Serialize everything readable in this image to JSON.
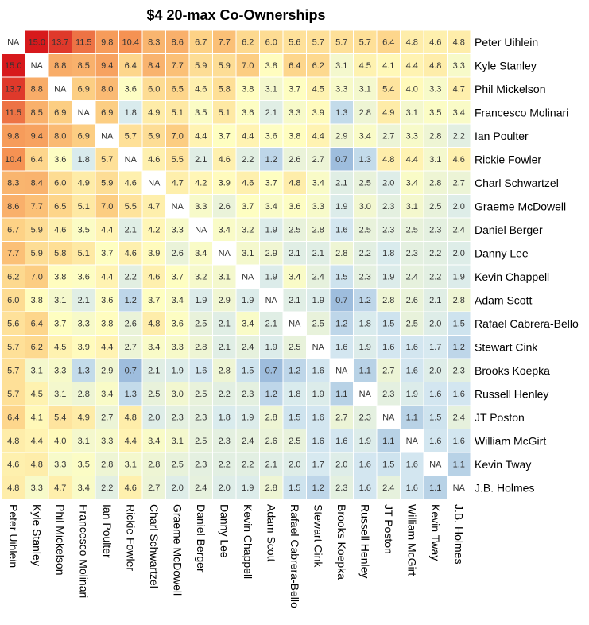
{
  "chart_data": {
    "type": "heatmap",
    "title": "$4 20-max Co-Ownerships",
    "xlabel": "",
    "ylabel": "",
    "missing_label": "NA",
    "players": [
      "Peter Uihlein",
      "Kyle Stanley",
      "Phil Mickelson",
      "Francesco Molinari",
      "Ian Poulter",
      "Rickie Fowler",
      "Charl Schwartzel",
      "Graeme McDowell",
      "Daniel Berger",
      "Danny Lee",
      "Kevin Chappell",
      "Adam Scott",
      "Rafael Cabrera-Bello",
      "Stewart Cink",
      "Brooks Koepka",
      "Russell Henley",
      "JT Poston",
      "William McGirt",
      "Kevin Tway",
      "J.B. Holmes"
    ],
    "values": [
      [
        null,
        15.0,
        13.7,
        11.5,
        9.8,
        10.4,
        8.3,
        8.6,
        6.7,
        7.7,
        6.2,
        6.0,
        5.6,
        5.7,
        5.7,
        5.7,
        6.4,
        4.8,
        4.6,
        4.8
      ],
      [
        15.0,
        null,
        8.8,
        8.5,
        9.4,
        6.4,
        8.4,
        7.7,
        5.9,
        5.9,
        7.0,
        3.8,
        6.4,
        6.2,
        3.1,
        4.5,
        4.1,
        4.4,
        4.8,
        3.3
      ],
      [
        13.7,
        8.8,
        null,
        6.9,
        8.0,
        3.6,
        6.0,
        6.5,
        4.6,
        5.8,
        3.8,
        3.1,
        3.7,
        4.5,
        3.3,
        3.1,
        5.4,
        4.0,
        3.3,
        4.7
      ],
      [
        11.5,
        8.5,
        6.9,
        null,
        6.9,
        1.8,
        4.9,
        5.1,
        3.5,
        5.1,
        3.6,
        2.1,
        3.3,
        3.9,
        1.3,
        2.8,
        4.9,
        3.1,
        3.5,
        3.4
      ],
      [
        9.8,
        9.4,
        8.0,
        6.9,
        null,
        5.7,
        5.9,
        7.0,
        4.4,
        3.7,
        4.4,
        3.6,
        3.8,
        4.4,
        2.9,
        3.4,
        2.7,
        3.3,
        2.8,
        2.2
      ],
      [
        10.4,
        6.4,
        3.6,
        1.8,
        5.7,
        null,
        4.6,
        5.5,
        2.1,
        4.6,
        2.2,
        1.2,
        2.6,
        2.7,
        0.7,
        1.3,
        4.8,
        4.4,
        3.1,
        4.6
      ],
      [
        8.3,
        8.4,
        6.0,
        4.9,
        5.9,
        4.6,
        null,
        4.7,
        4.2,
        3.9,
        4.6,
        3.7,
        4.8,
        3.4,
        2.1,
        2.5,
        2.0,
        3.4,
        2.8,
        2.7
      ],
      [
        8.6,
        7.7,
        6.5,
        5.1,
        7.0,
        5.5,
        4.7,
        null,
        3.3,
        2.6,
        3.7,
        3.4,
        3.6,
        3.3,
        1.9,
        3.0,
        2.3,
        3.1,
        2.5,
        2.0
      ],
      [
        6.7,
        5.9,
        4.6,
        3.5,
        4.4,
        2.1,
        4.2,
        3.3,
        null,
        3.4,
        3.2,
        1.9,
        2.5,
        2.8,
        1.6,
        2.5,
        2.3,
        2.5,
        2.3,
        2.4
      ],
      [
        7.7,
        5.9,
        5.8,
        5.1,
        3.7,
        4.6,
        3.9,
        2.6,
        3.4,
        null,
        3.1,
        2.9,
        2.1,
        2.1,
        2.8,
        2.2,
        1.8,
        2.3,
        2.2,
        2.0
      ],
      [
        6.2,
        7.0,
        3.8,
        3.6,
        4.4,
        2.2,
        4.6,
        3.7,
        3.2,
        3.1,
        null,
        1.9,
        3.4,
        2.4,
        1.5,
        2.3,
        1.9,
        2.4,
        2.2,
        1.9
      ],
      [
        6.0,
        3.8,
        3.1,
        2.1,
        3.6,
        1.2,
        3.7,
        3.4,
        1.9,
        2.9,
        1.9,
        null,
        2.1,
        1.9,
        0.7,
        1.2,
        2.8,
        2.6,
        2.1,
        2.8
      ],
      [
        5.6,
        6.4,
        3.7,
        3.3,
        3.8,
        2.6,
        4.8,
        3.6,
        2.5,
        2.1,
        3.4,
        2.1,
        null,
        2.5,
        1.2,
        1.8,
        1.5,
        2.5,
        2.0,
        1.5
      ],
      [
        5.7,
        6.2,
        4.5,
        3.9,
        4.4,
        2.7,
        3.4,
        3.3,
        2.8,
        2.1,
        2.4,
        1.9,
        2.5,
        null,
        1.6,
        1.9,
        1.6,
        1.6,
        1.7,
        1.2
      ],
      [
        5.7,
        3.1,
        3.3,
        1.3,
        2.9,
        0.7,
        2.1,
        1.9,
        1.6,
        2.8,
        1.5,
        0.7,
        1.2,
        1.6,
        null,
        1.1,
        2.7,
        1.6,
        2.0,
        2.3
      ],
      [
        5.7,
        4.5,
        3.1,
        2.8,
        3.4,
        1.3,
        2.5,
        3.0,
        2.5,
        2.2,
        2.3,
        1.2,
        1.8,
        1.9,
        1.1,
        null,
        2.3,
        1.9,
        1.6,
        1.6
      ],
      [
        6.4,
        4.1,
        5.4,
        4.9,
        2.7,
        4.8,
        2.0,
        2.3,
        2.3,
        1.8,
        1.9,
        2.8,
        1.5,
        1.6,
        2.7,
        2.3,
        null,
        1.1,
        1.5,
        2.4
      ],
      [
        4.8,
        4.4,
        4.0,
        3.1,
        3.3,
        4.4,
        3.4,
        3.1,
        2.5,
        2.3,
        2.4,
        2.6,
        2.5,
        1.6,
        1.6,
        1.9,
        1.1,
        null,
        1.6,
        1.6
      ],
      [
        4.6,
        4.8,
        3.3,
        3.5,
        2.8,
        3.1,
        2.8,
        2.5,
        2.3,
        2.2,
        2.2,
        2.1,
        2.0,
        1.7,
        2.0,
        1.6,
        1.5,
        1.6,
        null,
        1.1
      ],
      [
        4.8,
        3.3,
        4.7,
        3.4,
        2.2,
        4.6,
        2.7,
        2.0,
        2.4,
        2.0,
        1.9,
        2.8,
        1.5,
        1.2,
        2.3,
        1.6,
        2.4,
        1.6,
        1.1,
        null
      ]
    ],
    "color_scale": [
      "#2f63ad",
      "#86abd5",
      "#d6e9f1",
      "#fffec0",
      "#fdd387",
      "#f59253",
      "#d7191c"
    ],
    "missing_color": "#ffffff",
    "grid_line_color": "#ffffff",
    "text_color": "#333333"
  }
}
